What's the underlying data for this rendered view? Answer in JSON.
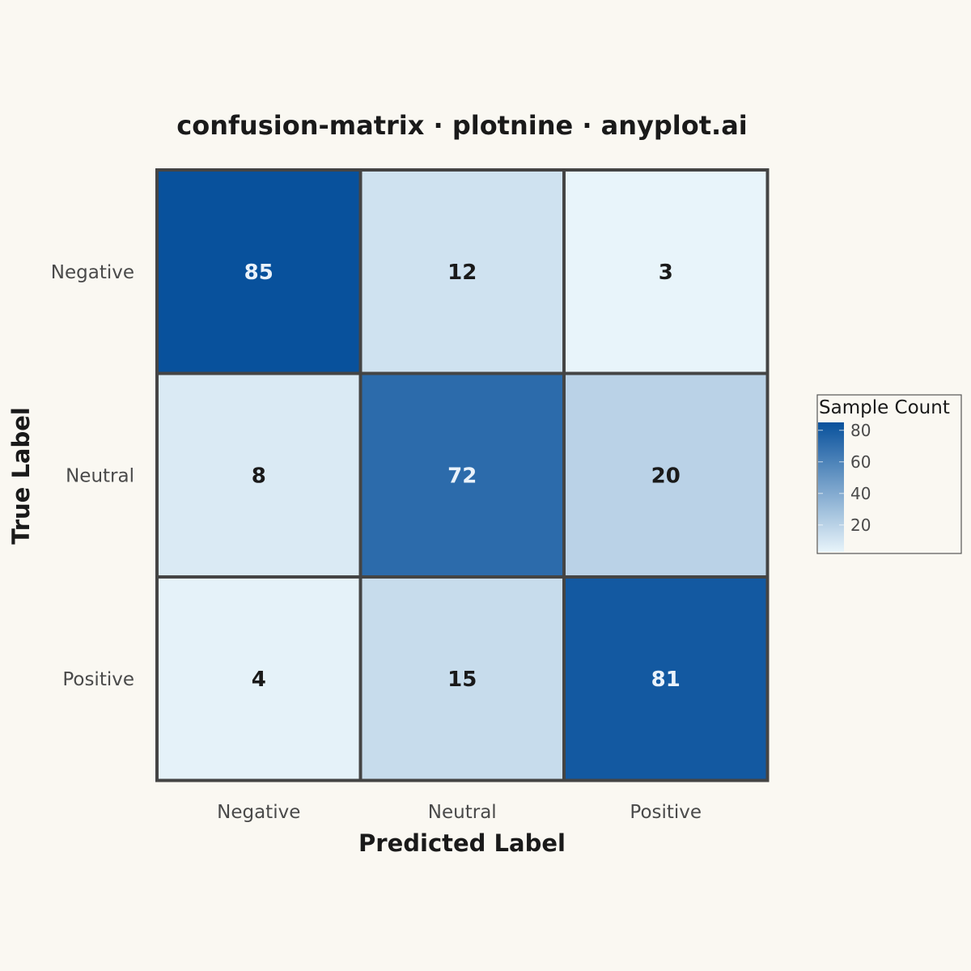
{
  "chart_data": {
    "type": "heatmap",
    "title": "confusion-matrix · plotnine · anyplot.ai",
    "xlabel": "Predicted Label",
    "ylabel": "True Label",
    "x_categories": [
      "Negative",
      "Neutral",
      "Positive"
    ],
    "y_categories": [
      "Negative",
      "Neutral",
      "Positive"
    ],
    "values": [
      [
        85,
        12,
        3
      ],
      [
        8,
        72,
        20
      ],
      [
        4,
        15,
        81
      ]
    ],
    "legend": {
      "title": "Sample Count",
      "ticks": [
        20,
        40,
        60,
        80
      ],
      "range": [
        3,
        85
      ],
      "placement": "right"
    },
    "colors": {
      "low": "#E8F4FA",
      "high": "#08519C",
      "grid": "#444444",
      "background": "#FAF8F2",
      "text_dark": "#1a1a1a",
      "text_light": "#EAF2FA"
    },
    "grid": false
  }
}
